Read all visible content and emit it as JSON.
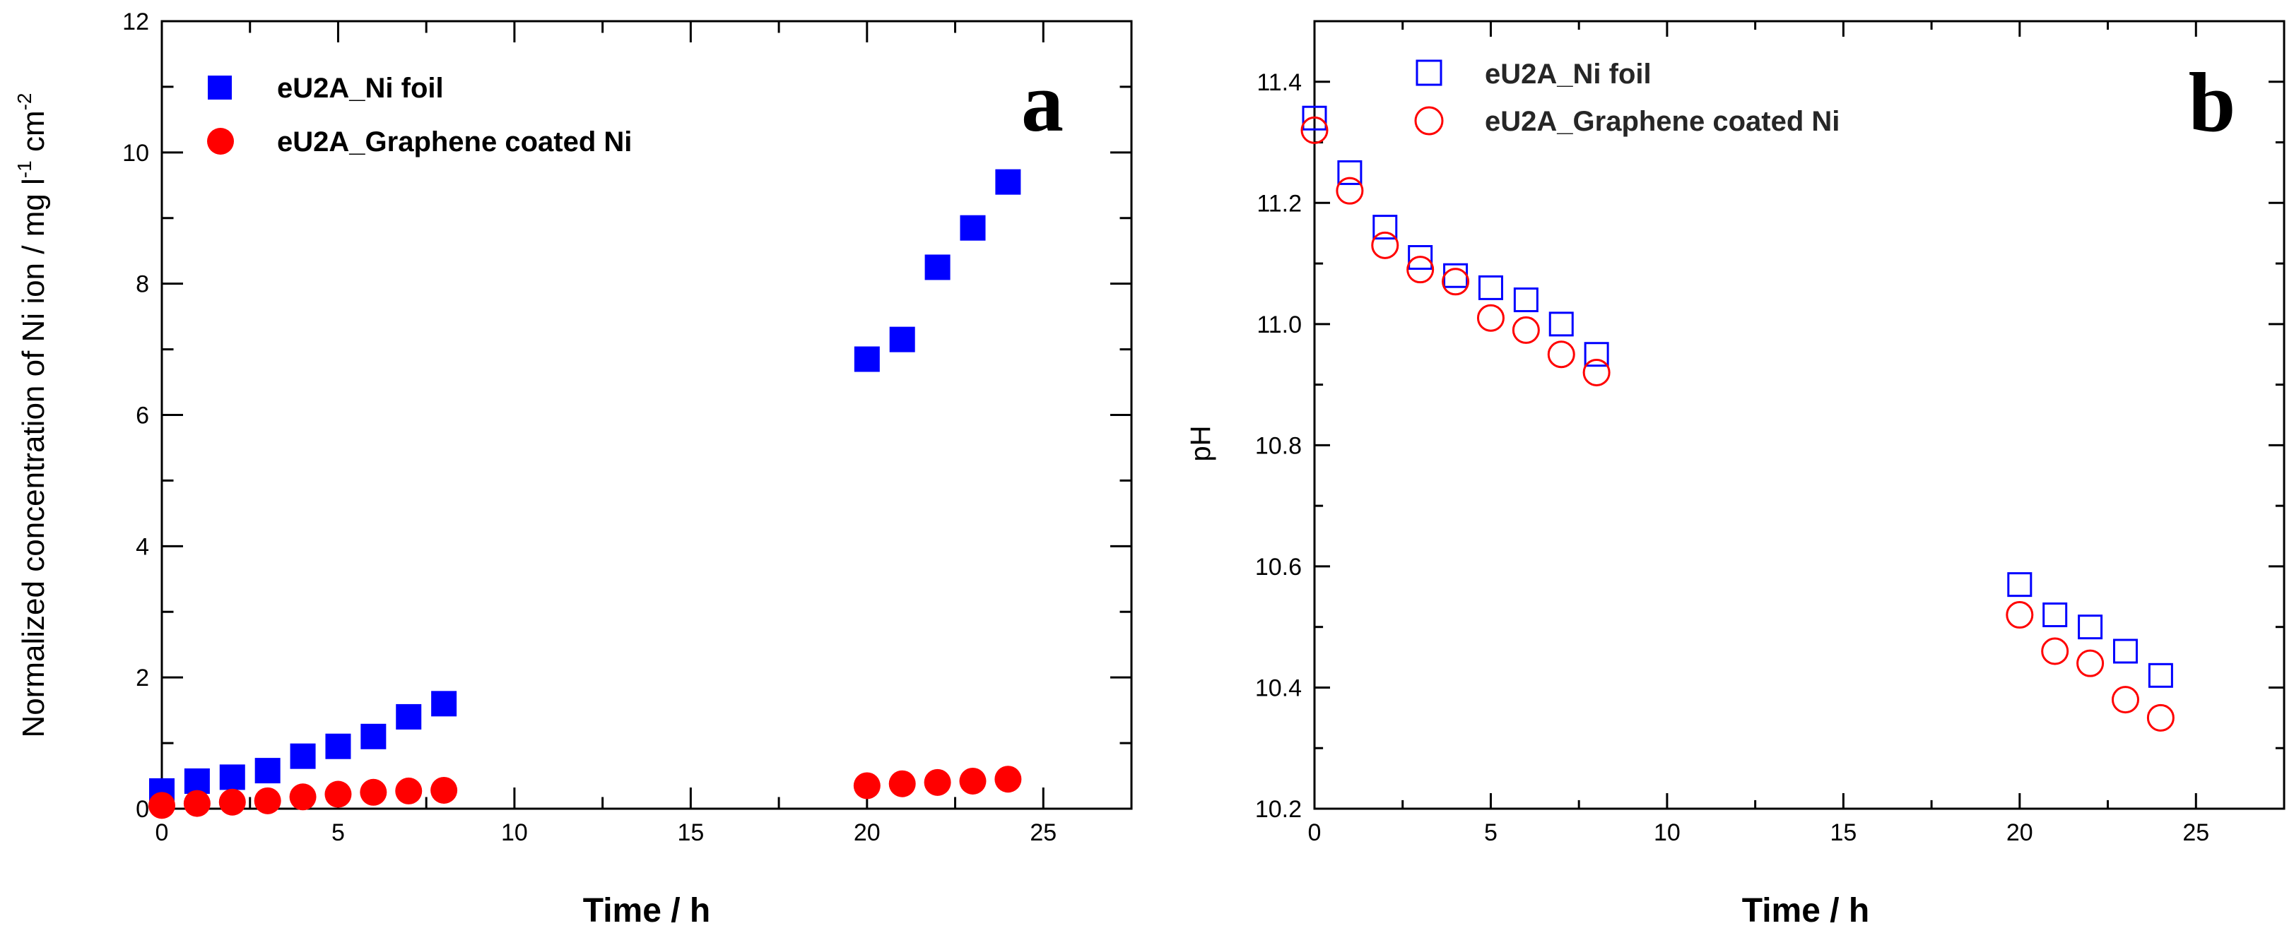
{
  "chart_data": [
    {
      "type": "scatter",
      "panel_label": "a",
      "xlabel": "Time / h",
      "ylabel": "Normalized concentration of Ni ion / mg l",
      "ylabel_sup1": "-1",
      "ylabel_mid": " cm",
      "ylabel_sup2": "-2",
      "xlim": [
        0,
        27.5
      ],
      "ylim": [
        0,
        12
      ],
      "x_ticks": [
        0,
        5,
        10,
        15,
        20,
        25
      ],
      "x_tick_labels": [
        "0",
        "5",
        "10",
        "15",
        "20",
        "25"
      ],
      "y_ticks": [
        0,
        2,
        4,
        6,
        8,
        10,
        12
      ],
      "y_tick_labels": [
        "0",
        "2",
        "4",
        "6",
        "8",
        "10",
        "12"
      ],
      "legend_position": "top-left",
      "series": [
        {
          "name": "eU2A_Ni foil",
          "marker": "filled-square",
          "color": "#0000ff",
          "x": [
            0,
            1,
            2,
            3,
            4,
            5,
            6,
            7,
            8,
            20,
            21,
            22,
            23,
            24
          ],
          "y": [
            0.27,
            0.42,
            0.48,
            0.58,
            0.8,
            0.95,
            1.1,
            1.4,
            1.6,
            6.85,
            7.15,
            8.25,
            8.85,
            9.55
          ]
        },
        {
          "name": "eU2A_Graphene coated Ni",
          "marker": "filled-circle",
          "color": "#ff0000",
          "x": [
            0,
            1,
            2,
            3,
            4,
            5,
            6,
            7,
            8,
            20,
            21,
            22,
            23,
            24
          ],
          "y": [
            0.05,
            0.08,
            0.1,
            0.12,
            0.18,
            0.22,
            0.25,
            0.27,
            0.28,
            0.35,
            0.38,
            0.4,
            0.42,
            0.45
          ]
        }
      ]
    },
    {
      "type": "scatter",
      "panel_label": "b",
      "xlabel": "Time / h",
      "ylabel": "pH",
      "xlim": [
        0,
        27.5
      ],
      "ylim": [
        10.2,
        11.5
      ],
      "x_ticks": [
        0,
        5,
        10,
        15,
        20,
        25
      ],
      "x_tick_labels": [
        "0",
        "5",
        "10",
        "15",
        "20",
        "25"
      ],
      "y_ticks": [
        10.2,
        10.4,
        10.6,
        10.8,
        11.0,
        11.2,
        11.4
      ],
      "y_tick_labels": [
        "10.2",
        "10.4",
        "10.6",
        "10.8",
        "11.0",
        "11.2",
        "11.4"
      ],
      "legend_position": "top-center",
      "series": [
        {
          "name": "eU2A_Ni foil",
          "marker": "open-square",
          "color": "#0000ff",
          "x": [
            0,
            1,
            2,
            3,
            4,
            5,
            6,
            7,
            8,
            20,
            21,
            22,
            23,
            24
          ],
          "y": [
            11.34,
            11.25,
            11.16,
            11.11,
            11.08,
            11.06,
            11.04,
            11.0,
            10.95,
            10.57,
            10.52,
            10.5,
            10.46,
            10.42
          ]
        },
        {
          "name": "eU2A_Graphene coated Ni",
          "marker": "open-circle",
          "color": "#ff0000",
          "x": [
            0,
            1,
            2,
            3,
            4,
            5,
            6,
            7,
            8,
            20,
            21,
            22,
            23,
            24
          ],
          "y": [
            11.32,
            11.22,
            11.13,
            11.09,
            11.07,
            11.01,
            10.99,
            10.95,
            10.92,
            10.52,
            10.46,
            10.44,
            10.38,
            10.35
          ]
        }
      ]
    }
  ]
}
